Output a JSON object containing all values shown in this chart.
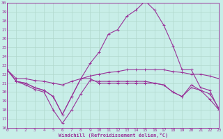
{
  "xlabel": "Windchill (Refroidissement éolien,°C)",
  "bg_color": "#c8eee8",
  "grid_color": "#b0d8cc",
  "line_color": "#993399",
  "xlim_min": 0,
  "xlim_max": 23,
  "ylim_min": 16,
  "ylim_max": 30,
  "xticks": [
    0,
    1,
    2,
    3,
    4,
    5,
    6,
    7,
    8,
    9,
    10,
    11,
    12,
    13,
    14,
    15,
    16,
    17,
    18,
    19,
    20,
    21,
    22,
    23
  ],
  "yticks": [
    16,
    17,
    18,
    19,
    20,
    21,
    22,
    23,
    24,
    25,
    26,
    27,
    28,
    29,
    30
  ],
  "lines": [
    {
      "x": [
        0,
        1,
        2,
        3,
        4,
        5,
        6,
        7,
        8,
        9,
        10,
        11,
        12,
        13,
        14,
        15,
        16,
        17,
        18,
        19,
        20,
        21,
        22,
        23
      ],
      "y": [
        22.5,
        21.2,
        21.0,
        20.5,
        20.2,
        19.5,
        17.5,
        19.5,
        21.5,
        23.2,
        24.5,
        26.5,
        27.0,
        28.5,
        29.2,
        30.2,
        29.2,
        27.5,
        25.2,
        22.5,
        22.5,
        20.5,
        20.2,
        18.0
      ],
      "has_marker": true
    },
    {
      "x": [
        0,
        1,
        2,
        3,
        4,
        5,
        6,
        7,
        8,
        9,
        10,
        11,
        12,
        13,
        14,
        15,
        16,
        17,
        18,
        19,
        20,
        21,
        22,
        23
      ],
      "y": [
        22.5,
        21.5,
        21.5,
        21.3,
        21.2,
        21.0,
        20.8,
        21.2,
        21.5,
        21.8,
        22.0,
        22.2,
        22.3,
        22.5,
        22.5,
        22.5,
        22.5,
        22.5,
        22.3,
        22.2,
        22.0,
        22.0,
        21.8,
        21.5
      ],
      "has_marker": true
    },
    {
      "x": [
        0,
        1,
        2,
        3,
        4,
        5,
        6,
        7,
        8,
        9,
        10,
        11,
        12,
        13,
        14,
        15,
        16,
        17,
        18,
        19,
        20,
        21,
        22,
        23
      ],
      "y": [
        22.5,
        21.2,
        20.8,
        20.3,
        20.0,
        18.0,
        16.5,
        18.0,
        19.8,
        21.3,
        21.2,
        21.2,
        21.2,
        21.2,
        21.2,
        21.2,
        21.0,
        20.8,
        20.0,
        19.5,
        20.5,
        20.2,
        19.2,
        18.0
      ],
      "has_marker": true
    },
    {
      "x": [
        0,
        1,
        2,
        3,
        4,
        5,
        6,
        7,
        8,
        9,
        10,
        11,
        12,
        13,
        14,
        15,
        16,
        17,
        18,
        19,
        20,
        21,
        22,
        23
      ],
      "y": [
        22.5,
        21.2,
        21.0,
        20.5,
        20.2,
        19.5,
        17.5,
        19.5,
        21.5,
        21.5,
        21.0,
        21.0,
        21.0,
        21.0,
        21.0,
        21.0,
        21.0,
        20.8,
        20.0,
        19.5,
        20.8,
        20.2,
        19.8,
        18.2
      ],
      "has_marker": true
    }
  ]
}
